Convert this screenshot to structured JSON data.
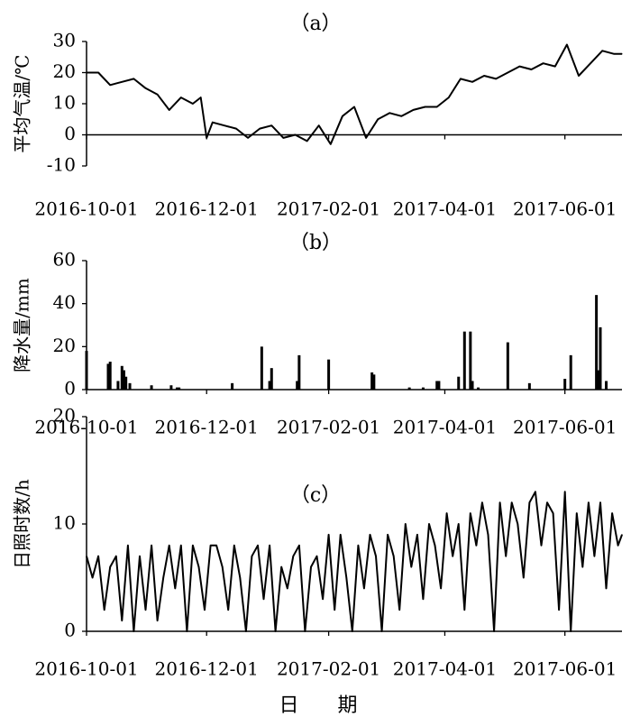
{
  "chart_data": [
    {
      "type": "line",
      "panel_label": "（a）",
      "ylabel": "平均气温/℃",
      "xlabel": "",
      "ylim": [
        -10,
        30
      ],
      "yticks": [
        "30",
        "20",
        "10",
        "0",
        "-10"
      ],
      "xticks": [
        "2016-10-01",
        "2016-12-01",
        "2017-02-01",
        "2017-04-01",
        "2017-06-01"
      ],
      "x_range": [
        "2016-10-01",
        "2017-06-30"
      ],
      "grid": false,
      "zero_line": true,
      "series": [
        {
          "x": [
            "2016-10-01",
            "2016-10-07",
            "2016-10-13",
            "2016-10-19",
            "2016-10-25",
            "2016-10-31",
            "2016-11-06",
            "2016-11-12",
            "2016-11-18",
            "2016-11-24",
            "2016-11-28",
            "2016-12-01",
            "2016-12-04",
            "2016-12-10",
            "2016-12-16",
            "2016-12-22",
            "2016-12-28",
            "2017-01-03",
            "2017-01-09",
            "2017-01-15",
            "2017-01-21",
            "2017-01-27",
            "2017-02-02",
            "2017-02-08",
            "2017-02-14",
            "2017-02-20",
            "2017-02-26",
            "2017-03-04",
            "2017-03-10",
            "2017-03-16",
            "2017-03-22",
            "2017-03-28",
            "2017-04-03",
            "2017-04-09",
            "2017-04-15",
            "2017-04-21",
            "2017-04-27",
            "2017-05-03",
            "2017-05-09",
            "2017-05-15",
            "2017-05-21",
            "2017-05-27",
            "2017-06-02",
            "2017-06-08",
            "2017-06-14",
            "2017-06-20",
            "2017-06-26",
            "2017-06-30"
          ],
          "values": [
            20,
            20,
            16,
            17,
            18,
            15,
            13,
            8,
            12,
            10,
            12,
            -1,
            4,
            3,
            2,
            -1,
            2,
            3,
            -1,
            0,
            -2,
            3,
            -3,
            6,
            9,
            -1,
            5,
            7,
            6,
            8,
            9,
            9,
            12,
            18,
            17,
            19,
            18,
            20,
            22,
            21,
            23,
            22,
            29,
            19,
            23,
            27,
            26,
            26
          ]
        }
      ]
    },
    {
      "type": "bar",
      "panel_label": "（b）",
      "ylabel": "降水量/mm",
      "xlabel": "",
      "ylim": [
        0,
        60
      ],
      "yticks": [
        "60",
        "40",
        "20",
        "0"
      ],
      "xticks": [
        "2016-10-01",
        "2016-12-01",
        "2017-02-01",
        "2017-04-01",
        "2017-06-01"
      ],
      "x_range": [
        "2016-10-01",
        "2017-06-30"
      ],
      "grid": false,
      "series": [
        {
          "x": [
            "2016-10-01",
            "2016-10-12",
            "2016-10-13",
            "2016-10-17",
            "2016-10-19",
            "2016-10-20",
            "2016-10-21",
            "2016-10-23",
            "2016-11-03",
            "2016-11-13",
            "2016-11-16",
            "2016-11-17",
            "2016-12-14",
            "2016-12-29",
            "2017-01-02",
            "2017-01-03",
            "2017-01-16",
            "2017-01-17",
            "2017-02-01",
            "2017-02-23",
            "2017-02-24",
            "2017-03-14",
            "2017-03-21",
            "2017-03-28",
            "2017-03-29",
            "2017-04-08",
            "2017-04-11",
            "2017-04-14",
            "2017-04-15",
            "2017-04-18",
            "2017-05-03",
            "2017-05-14",
            "2017-06-01",
            "2017-06-04",
            "2017-06-17",
            "2017-06-18",
            "2017-06-19",
            "2017-06-22"
          ],
          "values": [
            18,
            12,
            13,
            4,
            11,
            9,
            6,
            3,
            2,
            2,
            1,
            1,
            3,
            20,
            4,
            10,
            4,
            16,
            14,
            8,
            7,
            1,
            1,
            4,
            4,
            6,
            27,
            27,
            4,
            1,
            22,
            3,
            5,
            16,
            44,
            9,
            29,
            4
          ]
        }
      ]
    },
    {
      "type": "line",
      "panel_label": "（c）",
      "ylabel": "日照时数/h",
      "xlabel": "日 期",
      "ylim": [
        0,
        20
      ],
      "yticks": [
        "20",
        "10",
        "0"
      ],
      "xticks": [
        "2016-10-01",
        "2016-12-01",
        "2017-02-01",
        "2017-04-01",
        "2017-06-01"
      ],
      "x_range": [
        "2016-10-01",
        "2017-06-30"
      ],
      "grid": false,
      "series": [
        {
          "x": [
            "2016-10-01",
            "2016-10-04",
            "2016-10-07",
            "2016-10-10",
            "2016-10-13",
            "2016-10-16",
            "2016-10-19",
            "2016-10-22",
            "2016-10-25",
            "2016-10-28",
            "2016-10-31",
            "2016-11-03",
            "2016-11-06",
            "2016-11-09",
            "2016-11-12",
            "2016-11-15",
            "2016-11-18",
            "2016-11-21",
            "2016-11-24",
            "2016-11-27",
            "2016-11-30",
            "2016-12-03",
            "2016-12-06",
            "2016-12-09",
            "2016-12-12",
            "2016-12-15",
            "2016-12-18",
            "2016-12-21",
            "2016-12-24",
            "2016-12-27",
            "2016-12-30",
            "2017-01-02",
            "2017-01-05",
            "2017-01-08",
            "2017-01-11",
            "2017-01-14",
            "2017-01-17",
            "2017-01-20",
            "2017-01-23",
            "2017-01-26",
            "2017-01-29",
            "2017-02-01",
            "2017-02-04",
            "2017-02-07",
            "2017-02-10",
            "2017-02-13",
            "2017-02-16",
            "2017-02-19",
            "2017-02-22",
            "2017-02-25",
            "2017-02-28",
            "2017-03-03",
            "2017-03-06",
            "2017-03-09",
            "2017-03-12",
            "2017-03-15",
            "2017-03-18",
            "2017-03-21",
            "2017-03-24",
            "2017-03-27",
            "2017-03-30",
            "2017-04-02",
            "2017-04-05",
            "2017-04-08",
            "2017-04-11",
            "2017-04-14",
            "2017-04-17",
            "2017-04-20",
            "2017-04-23",
            "2017-04-26",
            "2017-04-29",
            "2017-05-02",
            "2017-05-05",
            "2017-05-08",
            "2017-05-11",
            "2017-05-14",
            "2017-05-17",
            "2017-05-20",
            "2017-05-23",
            "2017-05-26",
            "2017-05-29",
            "2017-06-01",
            "2017-06-04",
            "2017-06-07",
            "2017-06-10",
            "2017-06-13",
            "2017-06-16",
            "2017-06-19",
            "2017-06-22",
            "2017-06-25",
            "2017-06-28",
            "2017-06-30"
          ],
          "values": [
            7,
            5,
            7,
            2,
            6,
            7,
            1,
            8,
            0,
            7,
            2,
            8,
            1,
            5,
            8,
            4,
            8,
            0,
            8,
            6,
            2,
            8,
            8,
            6,
            2,
            8,
            5,
            0,
            7,
            8,
            3,
            8,
            0,
            6,
            4,
            7,
            8,
            0,
            6,
            7,
            3,
            9,
            2,
            9,
            5,
            0,
            8,
            4,
            9,
            7,
            0,
            9,
            7,
            2,
            10,
            6,
            9,
            3,
            10,
            8,
            4,
            11,
            7,
            10,
            2,
            11,
            8,
            12,
            9,
            0,
            12,
            7,
            12,
            10,
            5,
            12,
            13,
            8,
            12,
            11,
            2,
            13,
            0,
            11,
            6,
            12,
            7,
            12,
            4,
            11,
            8,
            9
          ]
        }
      ]
    }
  ]
}
